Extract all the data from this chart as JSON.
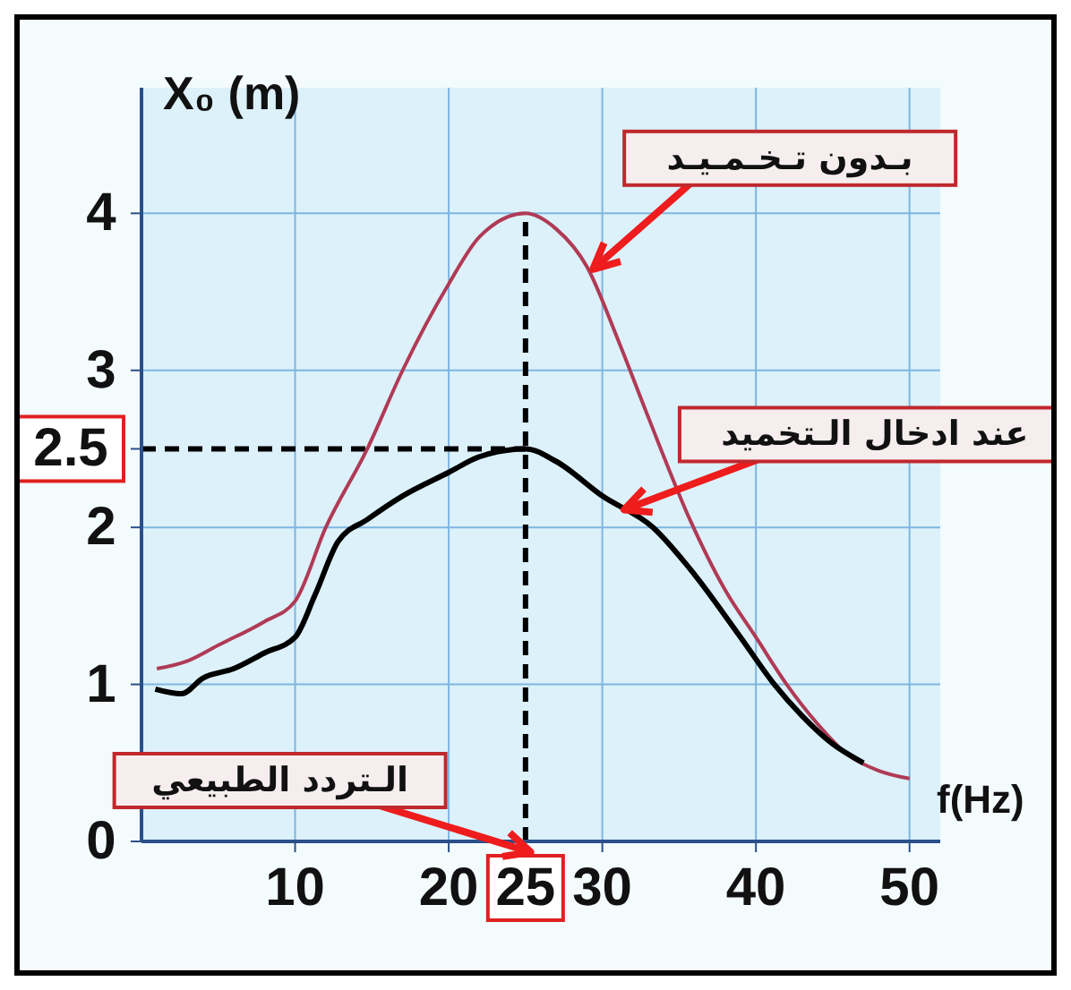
{
  "chart_data": {
    "type": "line",
    "xlabel": "f(Hz)",
    "ylabel": "X₀ (m)",
    "xlim": [
      0,
      52
    ],
    "ylim": [
      0,
      4.8
    ],
    "xticks": [
      10,
      20,
      25,
      30,
      40,
      50
    ],
    "yticks": [
      0,
      1,
      2,
      2.5,
      3,
      4
    ],
    "grid": true,
    "marker": "none",
    "line_style": "solid",
    "series": [
      {
        "color": "#b03a55",
        "x": [
          1,
          3,
          5,
          8,
          10,
          12,
          14.7,
          17,
          20,
          22,
          25,
          27,
          29,
          31,
          33,
          35.7,
          38,
          40,
          42,
          44,
          46,
          48,
          50
        ],
        "values": [
          1.1,
          1.15,
          1.25,
          1.4,
          1.53,
          2.0,
          2.5,
          3.0,
          3.55,
          3.85,
          4.0,
          3.9,
          3.66,
          3.2,
          2.7,
          2.05,
          1.6,
          1.3,
          1.0,
          0.75,
          0.55,
          0.45,
          0.4
        ]
      },
      {
        "color": "#000000",
        "x": [
          0.9,
          2.6,
          4,
          6,
          8,
          10,
          11.3,
          12.8,
          14.7,
          17,
          20,
          22,
          25,
          27,
          30,
          33.3,
          36,
          39,
          41.2,
          43,
          45,
          47
        ],
        "values": [
          0.97,
          0.94,
          1.04,
          1.1,
          1.2,
          1.3,
          1.57,
          1.91,
          2.05,
          2.2,
          2.35,
          2.45,
          2.5,
          2.42,
          2.2,
          2.0,
          1.7,
          1.3,
          1.0,
          0.8,
          0.62,
          0.5
        ]
      }
    ],
    "ref_lines": [
      {
        "axis": "x",
        "value": 25,
        "color": "#000000",
        "line_style": "dashed"
      },
      {
        "axis": "y",
        "value": 2.5,
        "color": "#000000",
        "line_style": "dashed"
      }
    ],
    "annotations": [
      {
        "text": "بـدون تـخـمـيـد",
        "x": 29,
        "y": 3.66
      },
      {
        "text": "عند ادخال الـتخميد",
        "x": 31,
        "y": 2.15
      },
      "الـتردد الطبيعي"
    ]
  }
}
